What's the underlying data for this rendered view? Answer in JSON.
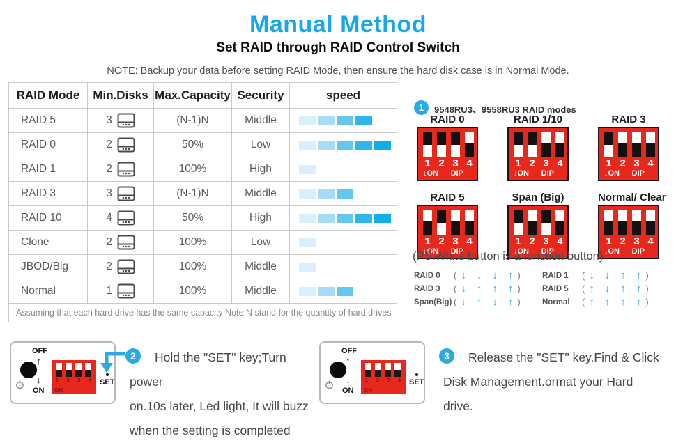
{
  "header": {
    "title": "Manual Method",
    "subtitle": "Set RAID through RAID Control Switch",
    "note": "NOTE: Backup your data before setting RAID Mode, then ensure the hard disk case is in Normal Mode."
  },
  "colors": {
    "accent": "#29abe2",
    "title_accent": "#18a7e9",
    "dip_red": "#e8271d",
    "speed_ramp": [
      "#d9f0fc",
      "#a8dcf6",
      "#64c7f0",
      "#2fb6ec",
      "#0cafe9"
    ]
  },
  "icons": {
    "power": "circle-with-line",
    "up_arrow": "↑",
    "down_arrow": "↓",
    "hard_drive": "rounded-rect-with-dots",
    "step_badge": "filled-circle-number"
  },
  "table": {
    "headers": [
      "RAID Mode",
      "Min.Disks",
      "Max.Capacity",
      "Security",
      "speed"
    ],
    "rows": [
      {
        "mode": "RAID 5",
        "disks": "3",
        "capacity": "(N-1)N",
        "security": "Middle",
        "speed": 4
      },
      {
        "mode": "RAID 0",
        "disks": "2",
        "capacity": "50%",
        "security": "Low",
        "speed": 5
      },
      {
        "mode": "RAID 1",
        "disks": "2",
        "capacity": "100%",
        "security": "High",
        "speed": 1
      },
      {
        "mode": "RAID 3",
        "disks": "3",
        "capacity": "(N-1)N",
        "security": "Middle",
        "speed": 3
      },
      {
        "mode": "RAID 10",
        "disks": "4",
        "capacity": "50%",
        "security": "High",
        "speed": 5
      },
      {
        "mode": "Clone",
        "disks": "2",
        "capacity": "100%",
        "security": "Low",
        "speed": 1
      },
      {
        "mode": "JBOD/Big",
        "disks": "2",
        "capacity": "100%",
        "security": "Middle",
        "speed": 1
      },
      {
        "mode": "Normal",
        "disks": "1",
        "capacity": "100%",
        "security": "Middle",
        "speed": 3
      }
    ],
    "footnote": "Assuming that each hard drive has the same capacity Note:N stand for the quantity of hard drives"
  },
  "dip_section": {
    "step_number": "1",
    "heading": "9548RU3、9558RU3  RAID modes",
    "switch_labels": [
      "1",
      "2",
      "3",
      "4"
    ],
    "on_label": "↓ON",
    "dip_label": "DIP",
    "modes": [
      {
        "name": "RAID 0",
        "positions": [
          "down",
          "down",
          "down",
          "up"
        ]
      },
      {
        "name": "RAID 1/10",
        "positions": [
          "down",
          "down",
          "up",
          "up"
        ]
      },
      {
        "name": "RAID 3",
        "positions": [
          "down",
          "up",
          "up",
          "up"
        ]
      },
      {
        "name": "RAID 5",
        "positions": [
          "up",
          "down",
          "up",
          "up"
        ]
      },
      {
        "name": "Span (Big)",
        "positions": [
          "down",
          "up",
          "down",
          "up"
        ]
      },
      {
        "name": "Normal/ Clear",
        "positions": [
          "up",
          "up",
          "up",
          "up"
        ]
      }
    ],
    "ps_note": "(PS:White button is a function button)",
    "legend_open": "(",
    "legend_close": ")",
    "arrow_legend": [
      {
        "name": "RAID 0",
        "arrows": [
          "↓",
          "↓",
          "↓",
          "↑"
        ]
      },
      {
        "name": "RAID 3",
        "arrows": [
          "↓",
          "↑",
          "↑",
          "↑"
        ]
      },
      {
        "name": "Span(Big)",
        "arrows": [
          "↓",
          "↑",
          "↓",
          "↑"
        ]
      },
      {
        "name": "RAID 1",
        "arrows": [
          "↓",
          "↓",
          "↑",
          "↑"
        ]
      },
      {
        "name": "RAID 5",
        "arrows": [
          "↑",
          "↓",
          "↑",
          "↑"
        ]
      },
      {
        "name": "Normal",
        "arrows": [
          "↑",
          "↑",
          "↑",
          "↑"
        ]
      }
    ]
  },
  "device": {
    "off_label": "OFF",
    "on_label": "ON",
    "up_arrow": "↑",
    "down_arrow": "↓",
    "set_label": "SET",
    "dip_on_label": "ON",
    "dip_numbers": [
      "1",
      "2",
      "3",
      "4"
    ]
  },
  "steps": [
    {
      "number": "2",
      "lines": [
        "Hold the \"SET\" key;Turn power",
        "on.10s later, Led light, It will buzz",
        "when the setting is completed"
      ]
    },
    {
      "number": "3",
      "lines": [
        "Release the \"SET\" key.Find & Click",
        "Disk Management.ormat your Hard",
        "drive."
      ]
    }
  ]
}
